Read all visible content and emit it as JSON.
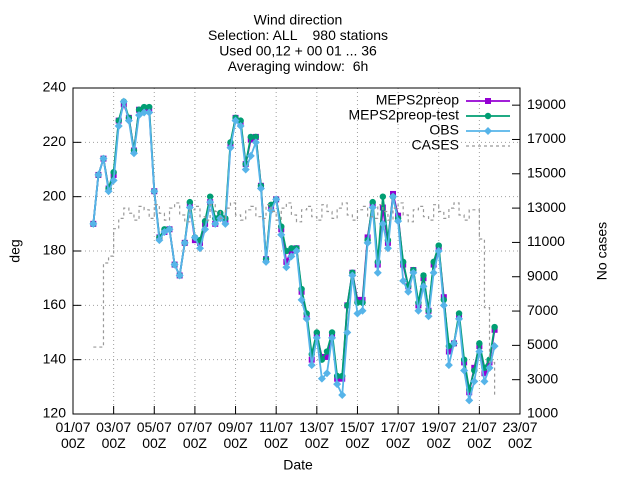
{
  "chart_data": {
    "type": "line",
    "title": [
      "Wind direction",
      "Selection: ALL    980 stations",
      "Used 00,12 + 00 01 ... 36",
      "Averaging window:  6h"
    ],
    "x_label": "Date",
    "y_label": "deg",
    "y2_label": "No cases",
    "xlim": [
      "01/07 00Z",
      "23/07 00Z"
    ],
    "xticks": [
      "01/07 00Z",
      "03/07 00Z",
      "05/07 00Z",
      "07/07 00Z",
      "09/07 00Z",
      "11/07 00Z",
      "13/07 00Z",
      "15/07 00Z",
      "17/07 00Z",
      "19/07 00Z",
      "21/07 00Z",
      "23/07 00Z"
    ],
    "ylim": [
      120,
      240
    ],
    "yticks": [
      120,
      140,
      160,
      180,
      200,
      220,
      240
    ],
    "y2lim": [
      1000,
      20000
    ],
    "y2ticks": [
      1000,
      3000,
      5000,
      7000,
      9000,
      11000,
      13000,
      15000,
      17000,
      19000
    ],
    "grid": true,
    "legend": "top-right",
    "x": [
      "02/07 00Z",
      "02/07 06Z",
      "02/07 12Z",
      "02/07 18Z",
      "03/07 00Z",
      "03/07 06Z",
      "03/07 12Z",
      "03/07 18Z",
      "04/07 00Z",
      "04/07 06Z",
      "04/07 12Z",
      "04/07 18Z",
      "05/07 00Z",
      "05/07 06Z",
      "05/07 12Z",
      "05/07 18Z",
      "06/07 00Z",
      "06/07 06Z",
      "06/07 12Z",
      "06/07 18Z",
      "07/07 00Z",
      "07/07 06Z",
      "07/07 12Z",
      "07/07 18Z",
      "08/07 00Z",
      "08/07 06Z",
      "08/07 12Z",
      "08/07 18Z",
      "09/07 00Z",
      "09/07 06Z",
      "09/07 12Z",
      "09/07 18Z",
      "10/07 00Z",
      "10/07 06Z",
      "10/07 12Z",
      "10/07 18Z",
      "11/07 00Z",
      "11/07 06Z",
      "11/07 12Z",
      "11/07 18Z",
      "12/07 00Z",
      "12/07 06Z",
      "12/07 12Z",
      "12/07 18Z",
      "13/07 00Z",
      "13/07 06Z",
      "13/07 12Z",
      "13/07 18Z",
      "14/07 00Z",
      "14/07 06Z",
      "14/07 12Z",
      "14/07 18Z",
      "15/07 00Z",
      "15/07 06Z",
      "15/07 12Z",
      "15/07 18Z",
      "16/07 00Z",
      "16/07 06Z",
      "16/07 12Z",
      "16/07 18Z",
      "17/07 00Z",
      "17/07 06Z",
      "17/07 12Z",
      "17/07 18Z",
      "18/07 00Z",
      "18/07 06Z",
      "18/07 12Z",
      "18/07 18Z",
      "19/07 00Z",
      "19/07 06Z",
      "19/07 12Z",
      "19/07 18Z",
      "20/07 00Z",
      "20/07 06Z",
      "20/07 12Z",
      "20/07 18Z",
      "21/07 00Z",
      "21/07 06Z",
      "21/07 12Z",
      "21/07 18Z"
    ],
    "series": [
      {
        "name": "MEPS2preop",
        "color": "#9400d3",
        "marker": "square",
        "values": [
          190,
          208,
          214,
          203,
          208,
          228,
          234,
          229,
          217,
          232,
          232,
          232,
          202,
          185,
          187,
          188,
          175,
          171,
          183,
          197,
          184,
          183,
          190,
          198,
          190,
          193,
          191,
          219,
          229,
          227,
          212,
          221,
          222,
          204,
          177,
          196,
          199,
          188,
          176,
          180,
          181,
          165,
          156,
          140,
          149,
          141,
          141,
          149,
          133,
          133,
          160,
          172,
          162,
          162,
          185,
          197,
          175,
          196,
          183,
          201,
          193,
          175,
          167,
          173,
          160,
          170,
          158,
          175,
          181,
          163,
          143,
          146,
          156,
          139,
          128,
          137,
          145,
          135,
          139,
          151
        ]
      },
      {
        "name": "MEPS2preop-test",
        "color": "#009e73",
        "marker": "circle",
        "values": [
          190,
          208,
          214,
          203,
          209,
          228,
          235,
          229,
          217,
          232,
          233,
          233,
          202,
          185,
          188,
          188,
          175,
          171,
          183,
          198,
          185,
          184,
          191,
          200,
          192,
          194,
          192,
          220,
          229,
          228,
          212,
          222,
          222,
          204,
          177,
          197,
          199,
          189,
          180,
          181,
          181,
          166,
          157,
          142,
          150,
          140,
          143,
          150,
          134,
          134,
          160,
          172,
          161,
          161,
          184,
          198,
          176,
          200,
          184,
          200,
          192,
          176,
          167,
          173,
          161,
          171,
          158,
          176,
          182,
          162,
          145,
          146,
          157,
          140,
          129,
          136,
          146,
          137,
          140,
          152
        ]
      },
      {
        "name": "OBS",
        "color": "#56b4e9",
        "marker": "diamond",
        "values": [
          190,
          208,
          214,
          202,
          206,
          226,
          235,
          228,
          216,
          230,
          231,
          231,
          202,
          184,
          187,
          188,
          175,
          171,
          183,
          196,
          185,
          181,
          188,
          198,
          190,
          192,
          190,
          218,
          228,
          226,
          210,
          215,
          220,
          203,
          176,
          195,
          199,
          186,
          174,
          178,
          180,
          162,
          155,
          138,
          148,
          133,
          135,
          148,
          131,
          127,
          150,
          171,
          157,
          158,
          183,
          196,
          172,
          190,
          181,
          200,
          191,
          169,
          165,
          172,
          158,
          167,
          156,
          172,
          180,
          160,
          138,
          146,
          155,
          136,
          125,
          132,
          143,
          132,
          137,
          145
        ]
      },
      {
        "name": "CASES",
        "color": "#999999",
        "axis": "y2",
        "dashed": true,
        "values": [
          4900,
          4900,
          9800,
          10200,
          11800,
          12400,
          13000,
          12700,
          12300,
          13100,
          12900,
          12400,
          13200,
          12700,
          12300,
          13000,
          13300,
          12600,
          12200,
          12900,
          13100,
          12500,
          12300,
          13200,
          12800,
          12400,
          13000,
          13300,
          12600,
          12300,
          12900,
          13100,
          12500,
          12400,
          13200,
          12800,
          12300,
          13000,
          13300,
          12600,
          12200,
          12900,
          13100,
          12500,
          12300,
          13200,
          12800,
          12400,
          13000,
          13300,
          12600,
          12300,
          12900,
          13100,
          12500,
          12400,
          13200,
          12800,
          12300,
          13000,
          13300,
          12600,
          12200,
          12900,
          13100,
          12500,
          12300,
          13200,
          12800,
          12400,
          13000,
          13300,
          12600,
          12300,
          12900,
          12900,
          11200,
          7200,
          4000,
          2000
        ]
      }
    ]
  }
}
